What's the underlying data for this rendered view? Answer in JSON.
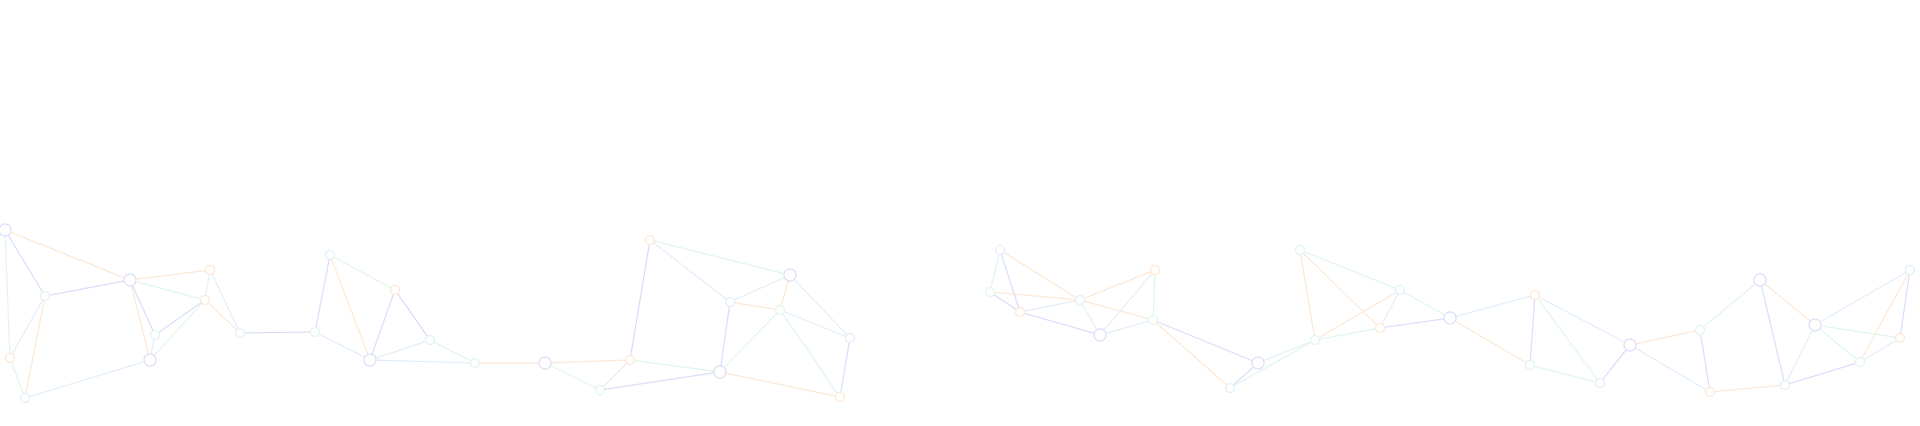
{
  "background": {
    "pattern": "network-mesh",
    "base_color": "#ffffff",
    "line_colors": [
      "#dcdcfa",
      "#dff6ee",
      "#fde8d4",
      "#e2eefa"
    ]
  }
}
